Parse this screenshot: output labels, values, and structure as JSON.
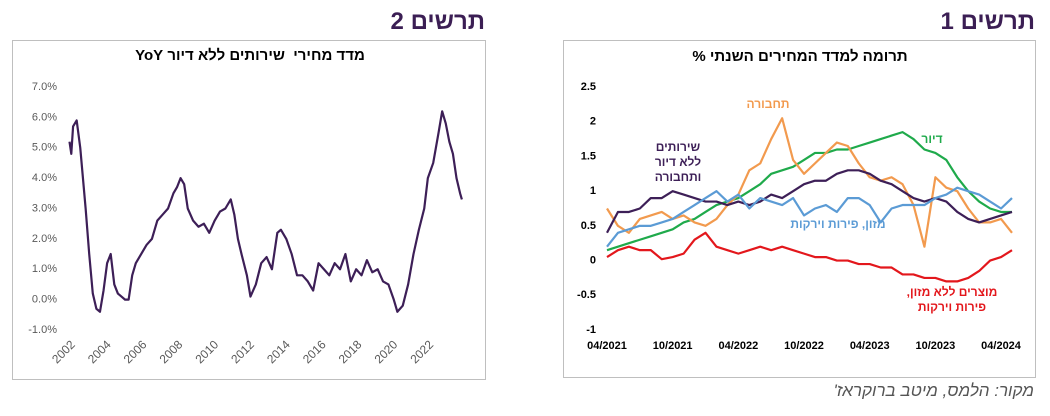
{
  "chart_data": [
    {
      "type": "line",
      "figure_label": "תרשים 1",
      "title": "תרומה למדד המחירים השנתי %",
      "categories": [
        "04/2021",
        null,
        null,
        null,
        null,
        null,
        "10/2021",
        null,
        null,
        null,
        null,
        null,
        "04/2022",
        null,
        null,
        null,
        null,
        null,
        "10/2022",
        null,
        null,
        null,
        null,
        null,
        "04/2023",
        null,
        null,
        null,
        null,
        null,
        "10/2023",
        null,
        null,
        null,
        null,
        null,
        "04/2024",
        null
      ],
      "ylim": [
        -1,
        2.5
      ],
      "yticks": [
        -1,
        -0.5,
        0,
        0.5,
        1,
        1.5,
        2,
        2.5
      ],
      "grid": false,
      "series": [
        {
          "name": "דיור",
          "color": "#1faa4b",
          "values": [
            0.15,
            0.2,
            0.25,
            0.3,
            0.35,
            0.4,
            0.45,
            0.55,
            0.6,
            0.7,
            0.8,
            0.85,
            0.9,
            1.0,
            1.1,
            1.25,
            1.3,
            1.35,
            1.45,
            1.55,
            1.55,
            1.6,
            1.6,
            1.65,
            1.7,
            1.75,
            1.8,
            1.85,
            1.75,
            1.6,
            1.55,
            1.45,
            1.2,
            1.0,
            0.85,
            0.75,
            0.7,
            0.7
          ]
        },
        {
          "name": "תחבורה",
          "color": "#f29a4e",
          "values": [
            0.75,
            0.5,
            0.4,
            0.6,
            0.65,
            0.7,
            0.6,
            0.65,
            0.55,
            0.5,
            0.6,
            0.8,
            0.95,
            1.3,
            1.4,
            1.75,
            2.05,
            1.45,
            1.25,
            1.4,
            1.55,
            1.7,
            1.65,
            1.4,
            1.2,
            1.15,
            1.2,
            1.1,
            0.8,
            0.2,
            1.2,
            1.05,
            1.0,
            0.75,
            0.55,
            0.55,
            0.6,
            0.4
          ]
        },
        {
          "name": "שירותים\nללא דיור\nותחבורה",
          "color": "#3d1f57",
          "values": [
            0.4,
            0.7,
            0.7,
            0.75,
            0.9,
            0.9,
            1.0,
            0.95,
            0.9,
            0.85,
            0.85,
            0.8,
            0.85,
            0.8,
            0.85,
            0.95,
            0.9,
            1.0,
            1.1,
            1.15,
            1.15,
            1.25,
            1.3,
            1.3,
            1.25,
            1.15,
            1.1,
            1.0,
            0.9,
            0.85,
            0.9,
            0.85,
            0.7,
            0.6,
            0.55,
            0.6,
            0.65,
            0.7
          ]
        },
        {
          "name": "מזון, פירות וירקות",
          "color": "#5b9bd5",
          "values": [
            0.2,
            0.4,
            0.45,
            0.5,
            0.5,
            0.55,
            0.6,
            0.7,
            0.8,
            0.9,
            1.0,
            0.85,
            0.95,
            0.75,
            0.9,
            0.85,
            0.8,
            0.9,
            0.65,
            0.75,
            0.8,
            0.7,
            0.9,
            0.9,
            0.8,
            0.55,
            0.75,
            0.8,
            0.8,
            0.8,
            0.9,
            0.95,
            1.05,
            1.0,
            0.95,
            0.85,
            0.75,
            0.9
          ]
        },
        {
          "name": "מוצרים ללא מזון,\nפירות וירקות",
          "color": "#e3171c",
          "values": [
            0.05,
            0.15,
            0.2,
            0.15,
            0.15,
            0.02,
            0.05,
            0.1,
            0.3,
            0.4,
            0.2,
            0.15,
            0.1,
            0.15,
            0.2,
            0.15,
            0.2,
            0.15,
            0.1,
            0.05,
            0.05,
            0.0,
            0.0,
            -0.05,
            -0.05,
            -0.1,
            -0.1,
            -0.2,
            -0.2,
            -0.25,
            -0.25,
            -0.3,
            -0.3,
            -0.25,
            -0.15,
            0.0,
            0.05,
            0.15
          ]
        }
      ]
    },
    {
      "type": "line",
      "figure_label": "תרשים 2",
      "title": "מדד מחירי  שירותים ללא דיור YoY",
      "x": [
        2002.0,
        2002.1,
        2002.2,
        2002.4,
        2002.6,
        2002.9,
        2003.1,
        2003.3,
        2003.5,
        2003.7,
        2003.9,
        2004.1,
        2004.3,
        2004.5,
        2004.7,
        2004.9,
        2005.1,
        2005.3,
        2005.5,
        2005.7,
        2006.0,
        2006.3,
        2006.6,
        2006.9,
        2007.2,
        2007.5,
        2007.8,
        2008.0,
        2008.2,
        2008.4,
        2008.6,
        2008.9,
        2009.2,
        2009.5,
        2009.8,
        2010.1,
        2010.4,
        2010.7,
        2011.0,
        2011.2,
        2011.4,
        2011.6,
        2011.9,
        2012.1,
        2012.4,
        2012.7,
        2013.0,
        2013.3,
        2013.6,
        2013.8,
        2014.1,
        2014.4,
        2014.7,
        2015.0,
        2015.3,
        2015.6,
        2015.9,
        2016.2,
        2016.5,
        2016.8,
        2017.1,
        2017.4,
        2017.7,
        2018.0,
        2018.3,
        2018.6,
        2018.9,
        2019.2,
        2019.5,
        2019.8,
        2020.1,
        2020.3,
        2020.6,
        2020.9,
        2021.2,
        2021.5,
        2021.8,
        2022.0,
        2022.3,
        2022.6,
        2022.8,
        2023.0,
        2023.2,
        2023.4,
        2023.6,
        2023.8,
        2023.9
      ],
      "series": [
        {
          "color": "#3d1f57",
          "values": [
            5.2,
            4.8,
            5.7,
            5.9,
            5.0,
            3.0,
            1.5,
            0.2,
            -0.3,
            -0.4,
            0.3,
            1.2,
            1.5,
            0.5,
            0.2,
            0.1,
            0.0,
            0.0,
            0.8,
            1.2,
            1.5,
            1.8,
            2.0,
            2.6,
            2.8,
            3.0,
            3.5,
            3.7,
            4.0,
            3.8,
            3.0,
            2.6,
            2.4,
            2.5,
            2.2,
            2.6,
            2.9,
            3.0,
            3.3,
            2.8,
            2.0,
            1.5,
            0.8,
            0.1,
            0.5,
            1.2,
            1.4,
            1.0,
            2.2,
            2.3,
            2.0,
            1.5,
            0.8,
            0.8,
            0.6,
            0.3,
            1.2,
            1.0,
            0.8,
            1.2,
            1.0,
            1.5,
            0.6,
            1.0,
            0.8,
            1.3,
            0.9,
            1.0,
            0.6,
            0.5,
            0.0,
            -0.4,
            -0.2,
            0.5,
            1.5,
            2.3,
            3.0,
            4.0,
            4.5,
            5.5,
            6.2,
            5.8,
            5.2,
            4.8,
            4.0,
            3.5,
            3.3
          ]
        }
      ],
      "xlim": [
        2000.8,
        2024.8
      ],
      "xticks": [
        2002,
        2004,
        2006,
        2008,
        2010,
        2012,
        2014,
        2016,
        2018,
        2020,
        2022
      ],
      "ylim": [
        -1,
        7
      ],
      "yticks": [
        {
          "value": -1,
          "label": "-1.0%"
        },
        {
          "value": 0,
          "label": "0.0%"
        },
        {
          "value": 1,
          "label": "1.0%"
        },
        {
          "value": 2,
          "label": "2.0%"
        },
        {
          "value": 3,
          "label": "3.0%"
        },
        {
          "value": 4,
          "label": "4.0%"
        },
        {
          "value": 5,
          "label": "5.0%"
        },
        {
          "value": 6,
          "label": "6.0%"
        },
        {
          "value": 7,
          "label": "7.0%"
        }
      ],
      "grid": false
    }
  ],
  "source": "מקור: הלמס, מיטב ברוקראז'"
}
